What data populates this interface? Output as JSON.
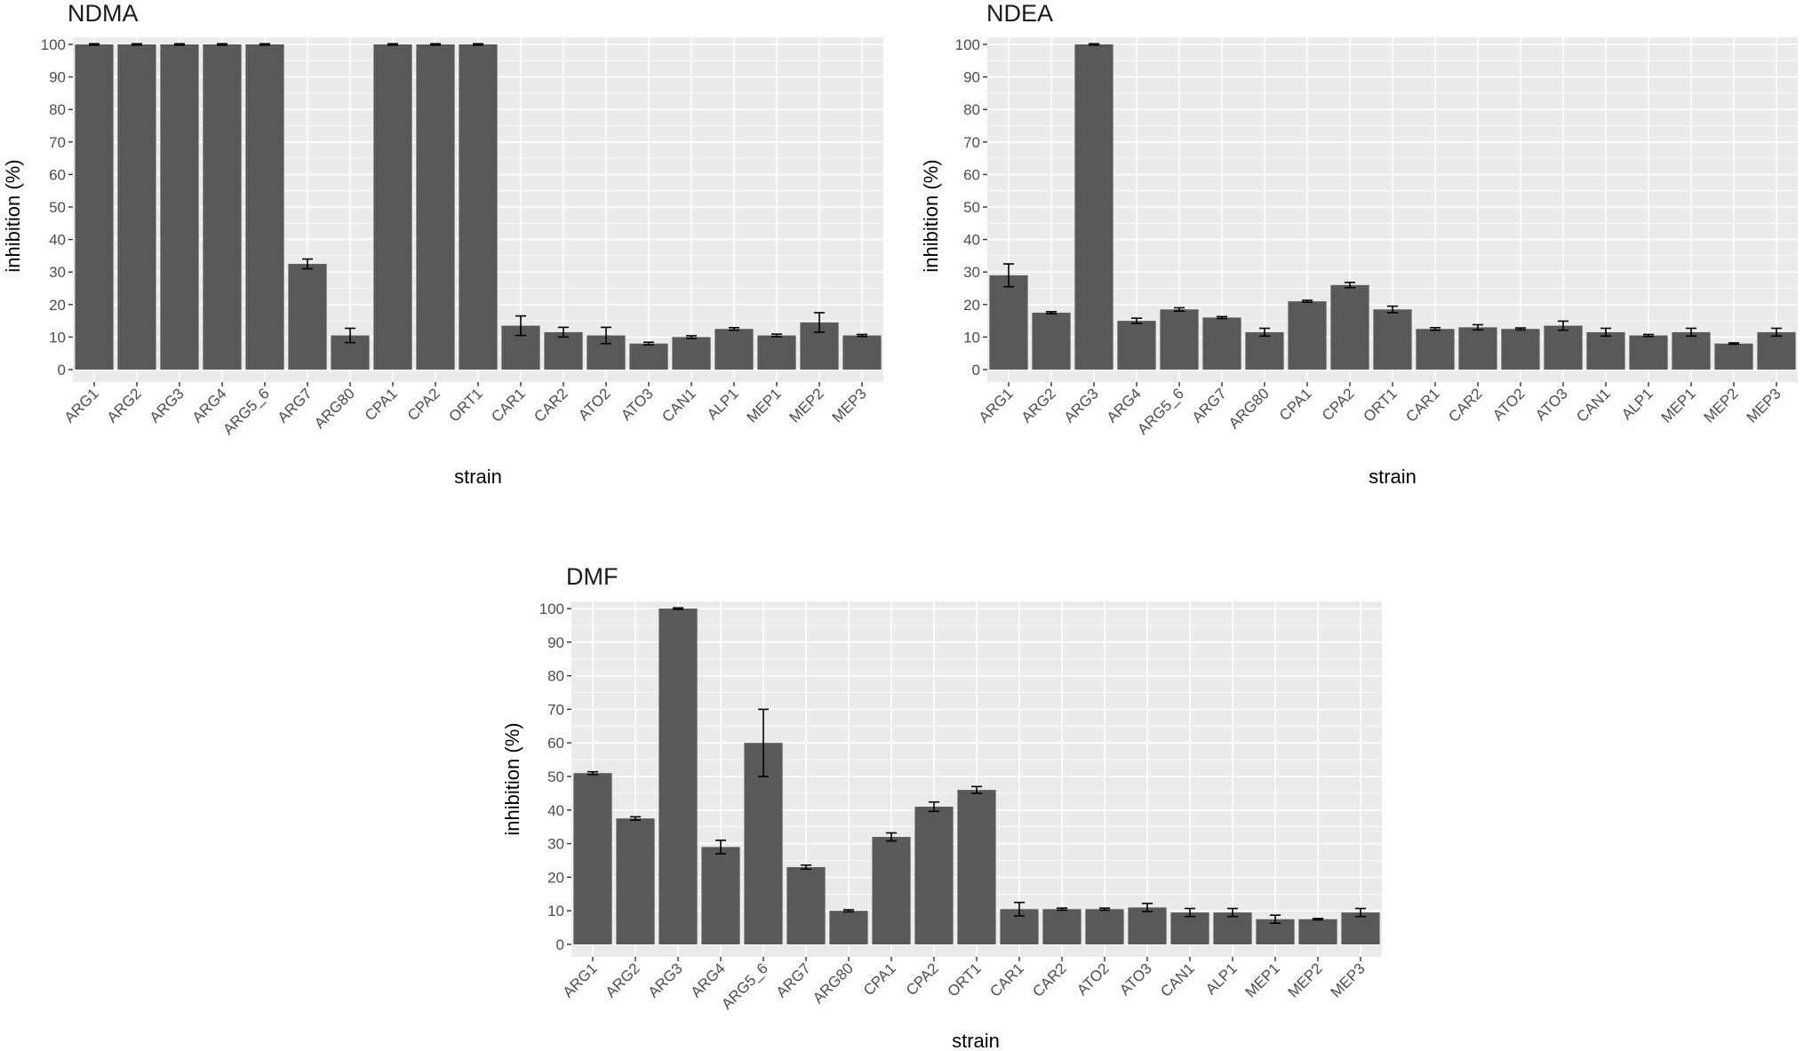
{
  "colors": {
    "panel": "#ebebeb",
    "grid": "#ffffff",
    "bar": "#595959",
    "error_bar": "#000000",
    "tick_text": "#4d4d4d"
  },
  "chart_data": [
    {
      "type": "bar",
      "title": "NDMA",
      "xlabel": "strain",
      "ylabel": "inhibition (%)",
      "ylim": [
        0,
        100
      ],
      "yticks": [
        0,
        10,
        20,
        30,
        40,
        50,
        60,
        70,
        80,
        90,
        100
      ],
      "categories": [
        "ARG1",
        "ARG2",
        "ARG3",
        "ARG4",
        "ARG5_6",
        "ARG7",
        "ARG80",
        "CPA1",
        "CPA2",
        "ORT1",
        "CAR1",
        "CAR2",
        "ATO2",
        "ATO3",
        "CAN1",
        "ALP1",
        "MEP1",
        "MEP2",
        "MEP3"
      ],
      "values": [
        100,
        100,
        100,
        100,
        100,
        32.5,
        10.5,
        100,
        100,
        100,
        13.5,
        11.5,
        10.5,
        8,
        10,
        12.5,
        10.5,
        14.5,
        10.5
      ],
      "errors": [
        0.2,
        0.2,
        0.2,
        0.2,
        0.2,
        1.5,
        2.2,
        0.2,
        0.2,
        0.2,
        3,
        1.5,
        2.5,
        0.4,
        0.4,
        0.4,
        0.4,
        3,
        0.3
      ]
    },
    {
      "type": "bar",
      "title": "NDEA",
      "xlabel": "strain",
      "ylabel": "inhibition (%)",
      "ylim": [
        0,
        100
      ],
      "yticks": [
        0,
        10,
        20,
        30,
        40,
        50,
        60,
        70,
        80,
        90,
        100
      ],
      "categories": [
        "ARG1",
        "ARG2",
        "ARG3",
        "ARG4",
        "ARG5_6",
        "ARG7",
        "ARG80",
        "CPA1",
        "CPA2",
        "ORT1",
        "CAR1",
        "CAR2",
        "ATO2",
        "ATO3",
        "CAN1",
        "ALP1",
        "MEP1",
        "MEP2",
        "MEP3"
      ],
      "values": [
        29,
        17.5,
        100,
        15,
        18.5,
        16,
        11.5,
        21,
        26,
        18.5,
        12.5,
        13,
        12.5,
        13.5,
        11.5,
        10.5,
        11.5,
        8,
        11.5
      ],
      "errors": [
        3.5,
        0.3,
        0.2,
        0.8,
        0.5,
        0.3,
        1.2,
        0.3,
        0.8,
        1,
        0.4,
        0.8,
        0.3,
        1.4,
        1.2,
        0.3,
        1.2,
        0.2,
        1.2
      ]
    },
    {
      "type": "bar",
      "title": "DMF",
      "xlabel": "strain",
      "ylabel": "inhibition (%)",
      "ylim": [
        0,
        100
      ],
      "yticks": [
        0,
        10,
        20,
        30,
        40,
        50,
        60,
        70,
        80,
        90,
        100
      ],
      "categories": [
        "ARG1",
        "ARG2",
        "ARG3",
        "ARG4",
        "ARG5_6",
        "ARG7",
        "ARG80",
        "CPA1",
        "CPA2",
        "ORT1",
        "CAR1",
        "CAR2",
        "ATO2",
        "ATO3",
        "CAN1",
        "ALP1",
        "MEP1",
        "MEP2",
        "MEP3"
      ],
      "values": [
        51,
        37.5,
        100,
        29,
        60,
        23,
        10,
        32,
        41,
        46,
        10.5,
        10.5,
        10.5,
        11,
        9.5,
        9.5,
        7.5,
        7.5,
        9.5
      ],
      "errors": [
        0.4,
        0.5,
        0.2,
        2,
        10,
        0.6,
        0.3,
        1.2,
        1.4,
        1,
        2,
        0.3,
        0.3,
        1.2,
        1.2,
        1.2,
        1.2,
        0.2,
        1.2
      ]
    }
  ]
}
